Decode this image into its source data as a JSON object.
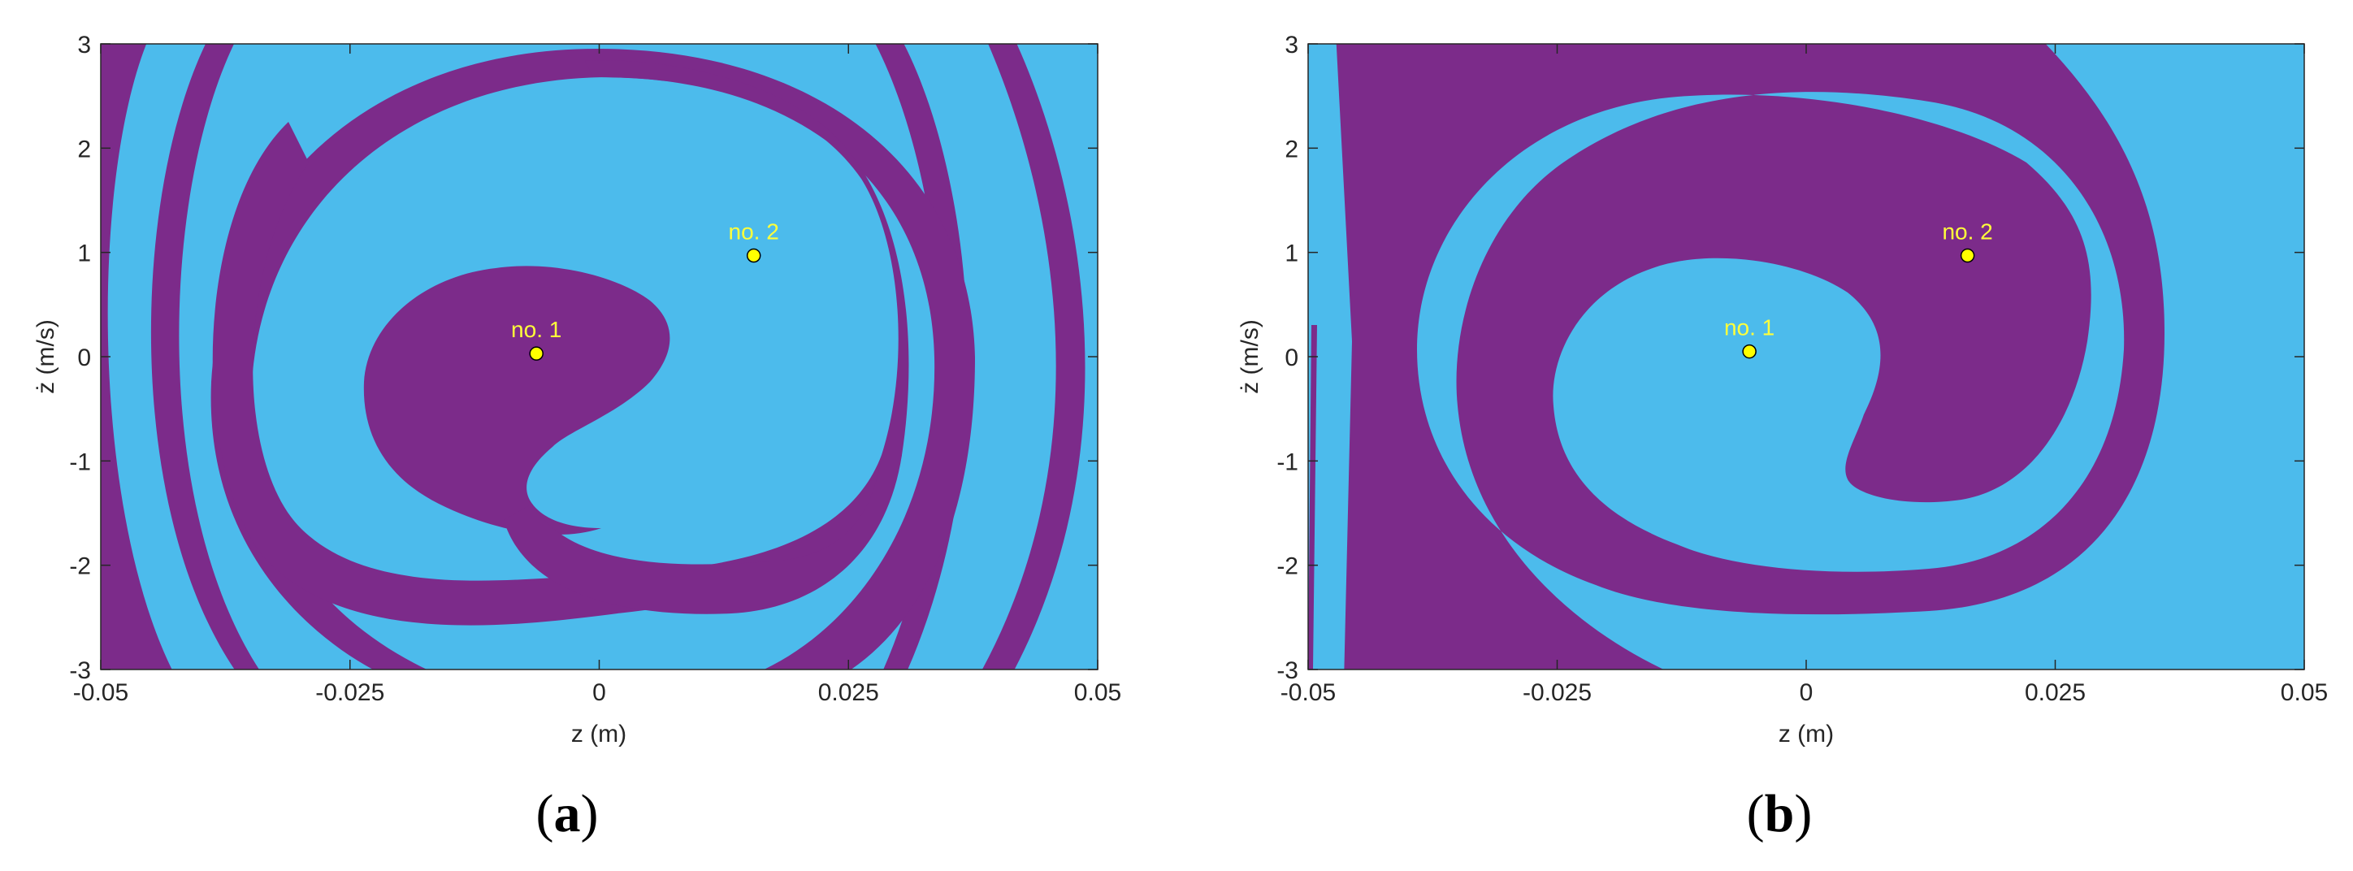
{
  "colors": {
    "basin_blue": "#4cbbec",
    "basin_purple": "#7c2b8a",
    "point_fill": "#ffff00",
    "point_label": "#ffff3a"
  },
  "chart_data": [
    {
      "panel": "(a)",
      "type": "heatmap",
      "description_of_regions": "two-colour basin-of-attraction map with interleaved spiral bands",
      "xlabel": "z (m)",
      "ylabel": "ż (m/s)",
      "xlim": [
        -0.05,
        0.05
      ],
      "ylim": [
        -3,
        3
      ],
      "xticks": [
        -0.05,
        -0.025,
        0,
        0.025,
        0.05
      ],
      "xtick_labels": [
        "-0.05",
        "-0.025",
        "0",
        "0.025",
        "0.05"
      ],
      "yticks": [
        3,
        2,
        1,
        0,
        -1,
        -2,
        -3
      ],
      "ytick_labels": [
        "3",
        "2",
        "1",
        "0",
        "-1",
        "-2",
        "-3"
      ],
      "grid": false,
      "points": [
        {
          "label": "no. 1",
          "x": -0.0063,
          "y": 0.03
        },
        {
          "label": "no. 2",
          "x": 0.0155,
          "y": 0.97
        }
      ]
    },
    {
      "panel": "(b)",
      "type": "heatmap",
      "description_of_regions": "two-colour basin-of-attraction map with one wide spiral band",
      "xlabel": "z (m)",
      "ylabel": "ż (m/s)",
      "xlim": [
        -0.05,
        0.05
      ],
      "ylim": [
        -3,
        3
      ],
      "xticks": [
        -0.05,
        -0.025,
        0,
        0.025,
        0.05
      ],
      "xtick_labels": [
        "-0.05",
        "-0.025",
        "0",
        "0.025",
        "0.05"
      ],
      "yticks": [
        3,
        2,
        1,
        0,
        -1,
        -2,
        -3
      ],
      "ytick_labels": [
        "3",
        "2",
        "1",
        "0",
        "-1",
        "-2",
        "-3"
      ],
      "grid": false,
      "points": [
        {
          "label": "no. 1",
          "x": -0.0057,
          "y": 0.05
        },
        {
          "label": "no. 2",
          "x": 0.0162,
          "y": 0.97
        }
      ]
    }
  ],
  "captions": {
    "a": {
      "open": "(",
      "letter": "a",
      "close": ")"
    },
    "b": {
      "open": "(",
      "letter": "b",
      "close": ")"
    }
  }
}
